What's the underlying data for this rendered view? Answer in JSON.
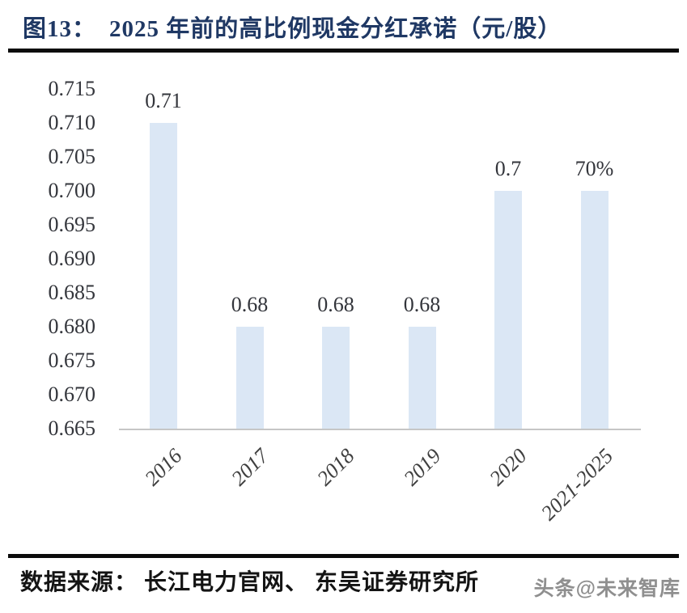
{
  "header": {
    "figure_label": "图13：",
    "title": "2025 年前的高比例现金分红承诺（元/股）"
  },
  "chart_data": {
    "type": "bar",
    "title": "2025 年前的高比例现金分红承诺（元/股）",
    "categories": [
      "2016",
      "2017",
      "2018",
      "2019",
      "2020",
      "2021-2025"
    ],
    "values": [
      0.71,
      0.68,
      0.68,
      0.68,
      0.7,
      0.7
    ],
    "bar_labels": [
      "0.71",
      "0.68",
      "0.68",
      "0.68",
      "0.7",
      "70%"
    ],
    "xlabel": "",
    "ylabel": "",
    "ylim": [
      0.665,
      0.715
    ],
    "ytick_step": 0.005,
    "ytick_labels": [
      "0.715",
      "0.710",
      "0.705",
      "0.700",
      "0.695",
      "0.690",
      "0.685",
      "0.680",
      "0.675",
      "0.670",
      "0.665"
    ],
    "grid": false,
    "legend": false,
    "bar_color": "#dbe7f5",
    "axis_line_color": "#c6c6c6",
    "tick_text_color": "#33353b",
    "data_label_color": "#33353b",
    "x_label_color": "#3f3f3f"
  },
  "colors": {
    "title": "#1f3864",
    "divider": "#0b0b0b",
    "watermark": "#8f8f8f",
    "source_text": "#141414"
  },
  "footer": {
    "source": "数据来源： 长江电力官网、 东吴证券研究所",
    "watermark": "头条@未来智库"
  }
}
